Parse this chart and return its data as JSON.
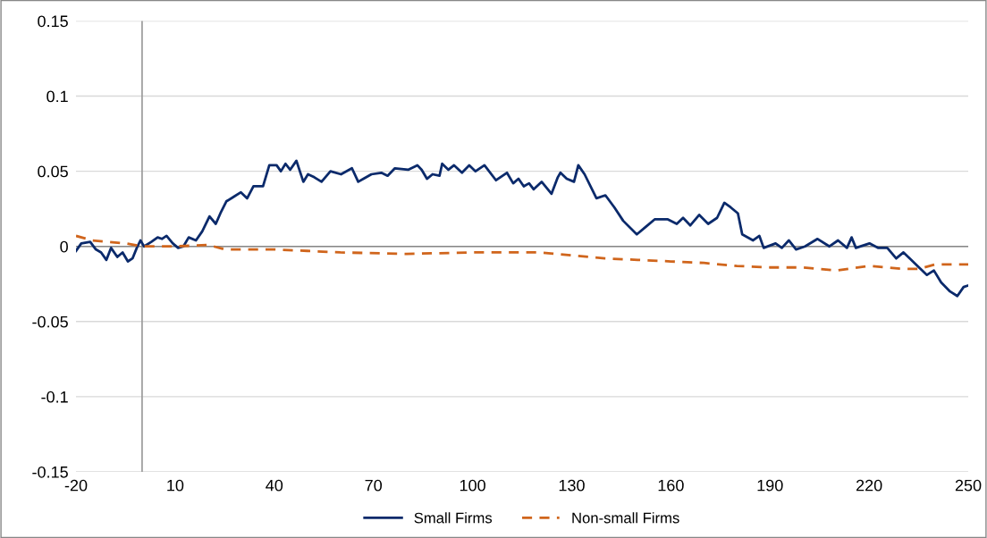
{
  "chart_data": {
    "type": "line",
    "xlim": [
      -20,
      250
    ],
    "xticks": [
      -20,
      10,
      40,
      70,
      100,
      130,
      160,
      190,
      220,
      250
    ],
    "ylim": [
      -0.15,
      0.15
    ],
    "yticks": [
      -0.15,
      -0.1,
      -0.05,
      0,
      0.05,
      0.1,
      0.15
    ],
    "grid": "y",
    "legend": "bottom",
    "ref_lines": [
      {
        "axis": "x",
        "value": 0,
        "color": "#999999"
      },
      {
        "axis": "y",
        "value": 0,
        "color": "#888888"
      }
    ],
    "series": [
      {
        "name": "Small Firms",
        "color": "#0b2a6b",
        "line_style": "solid",
        "x": [
          -20,
          -18.4,
          -15.7,
          -14,
          -12.4,
          -10.8,
          -9.4,
          -7.5,
          -5.9,
          -4.3,
          -2.9,
          -1.6,
          -0.5,
          0.6,
          2.8,
          4.7,
          6,
          7.4,
          9.3,
          10.9,
          12.5,
          14.1,
          16.3,
          18.2,
          20.4,
          22.3,
          23.9,
          25.5,
          27.7,
          29.9,
          31.8,
          33.7,
          36.6,
          38.5,
          40.7,
          42,
          43.4,
          44.8,
          46.7,
          48.8,
          50.2,
          52.1,
          54.3,
          57,
          60.2,
          63.5,
          65.4,
          67,
          69.4,
          72.4,
          74.3,
          76.5,
          80.5,
          83.3,
          84.6,
          86.2,
          87.9,
          90,
          90.8,
          92.7,
          94.4,
          96.8,
          99,
          100.9,
          103.6,
          107.1,
          110.4,
          112.3,
          113.9,
          115.5,
          117.1,
          118.5,
          120.9,
          123.9,
          125.8,
          126.6,
          128.5,
          130.7,
          132,
          133.9,
          137.5,
          140.2,
          142.9,
          145.6,
          149.7,
          152.4,
          155.1,
          159.1,
          161.8,
          163.7,
          165.9,
          168.6,
          171.3,
          174,
          176.2,
          178.1,
          180.3,
          181.6,
          184.9,
          186.8,
          188.1,
          191.7,
          193.6,
          195.7,
          197.9,
          200.6,
          204.4,
          208,
          210.6,
          213.3,
          214.7,
          216,
          220.1,
          222.8,
          225.5,
          228.2,
          230.4,
          233.7,
          237.5,
          239.6,
          241.8,
          244.5,
          246.7,
          248.6,
          250
        ],
        "values": [
          -0.003,
          0.002,
          0.003,
          -0.002,
          -0.004,
          -0.009,
          -0.001,
          -0.007,
          -0.004,
          -0.01,
          -0.008,
          -0.001,
          0.004,
          0,
          0.003,
          0.006,
          0.005,
          0.007,
          0.002,
          -0.001,
          0,
          0.006,
          0.004,
          0.01,
          0.02,
          0.015,
          0.023,
          0.03,
          0.033,
          0.036,
          0.032,
          0.04,
          0.04,
          0.054,
          0.054,
          0.05,
          0.055,
          0.051,
          0.057,
          0.043,
          0.048,
          0.046,
          0.043,
          0.05,
          0.048,
          0.052,
          0.043,
          0.045,
          0.048,
          0.049,
          0.047,
          0.052,
          0.051,
          0.054,
          0.051,
          0.045,
          0.048,
          0.047,
          0.055,
          0.051,
          0.054,
          0.049,
          0.054,
          0.05,
          0.054,
          0.044,
          0.049,
          0.042,
          0.045,
          0.04,
          0.042,
          0.038,
          0.043,
          0.035,
          0.046,
          0.049,
          0.045,
          0.043,
          0.054,
          0.048,
          0.032,
          0.034,
          0.026,
          0.017,
          0.008,
          0.013,
          0.018,
          0.018,
          0.015,
          0.019,
          0.014,
          0.021,
          0.015,
          0.019,
          0.029,
          0.026,
          0.022,
          0.008,
          0.004,
          0.007,
          -0.001,
          0.002,
          -0.001,
          0.004,
          -0.002,
          0,
          0.005,
          0,
          0.004,
          -0.001,
          0.006,
          -0.001,
          0.002,
          -0.001,
          -0.001,
          -0.008,
          -0.004,
          -0.011,
          -0.019,
          -0.016,
          -0.024,
          -0.03,
          -0.033,
          -0.027,
          -0.026
        ]
      },
      {
        "name": "Non-small Firms",
        "color": "#d0651c",
        "line_style": "dashed",
        "x": [
          -20,
          -15,
          -10,
          -5,
          0,
          10,
          20,
          25,
          40,
          50,
          60,
          80,
          100,
          120,
          130,
          140,
          150,
          160,
          170,
          180,
          190,
          200,
          210,
          220,
          230,
          235,
          240,
          250
        ],
        "values": [
          0.007,
          0.004,
          0.003,
          0.002,
          0,
          0,
          0.001,
          -0.002,
          -0.002,
          -0.003,
          -0.004,
          -0.005,
          -0.004,
          -0.004,
          -0.006,
          -0.008,
          -0.009,
          -0.01,
          -0.011,
          -0.013,
          -0.014,
          -0.014,
          -0.016,
          -0.013,
          -0.015,
          -0.015,
          -0.012,
          -0.012
        ]
      }
    ]
  }
}
